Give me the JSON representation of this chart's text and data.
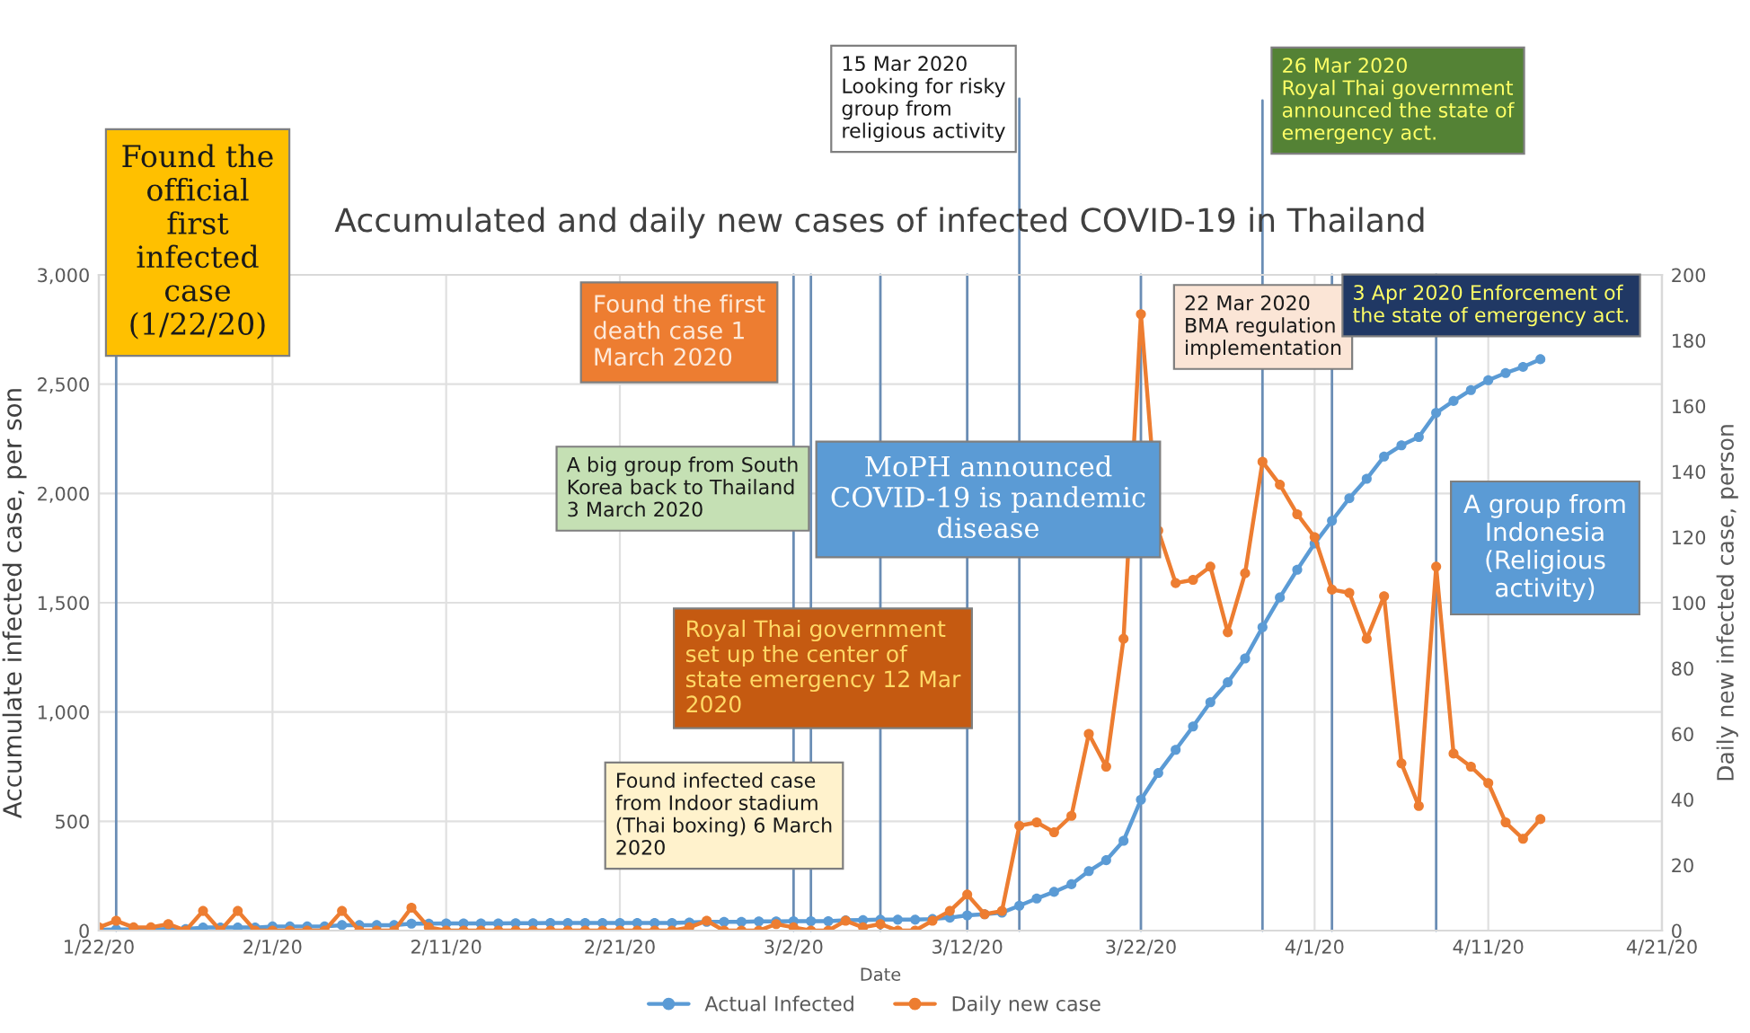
{
  "chart_data": {
    "type": "line",
    "title": "Accumulated and daily new cases of infected COVID-19 in Thailand",
    "xlabel": "Date",
    "ylabel": "Accumulate infected case, per son",
    "y2label": "Daily new infected case, person",
    "x": [
      "2020-01-22",
      "2020-01-23",
      "2020-01-24",
      "2020-01-25",
      "2020-01-26",
      "2020-01-27",
      "2020-01-28",
      "2020-01-29",
      "2020-01-30",
      "2020-01-31",
      "2020-02-01",
      "2020-02-02",
      "2020-02-03",
      "2020-02-04",
      "2020-02-05",
      "2020-02-06",
      "2020-02-07",
      "2020-02-08",
      "2020-02-09",
      "2020-02-10",
      "2020-02-11",
      "2020-02-12",
      "2020-02-13",
      "2020-02-14",
      "2020-02-15",
      "2020-02-16",
      "2020-02-17",
      "2020-02-18",
      "2020-02-19",
      "2020-02-20",
      "2020-02-21",
      "2020-02-22",
      "2020-02-23",
      "2020-02-24",
      "2020-02-25",
      "2020-02-26",
      "2020-02-27",
      "2020-02-28",
      "2020-02-29",
      "2020-03-01",
      "2020-03-02",
      "2020-03-03",
      "2020-03-04",
      "2020-03-05",
      "2020-03-06",
      "2020-03-07",
      "2020-03-08",
      "2020-03-09",
      "2020-03-10",
      "2020-03-11",
      "2020-03-12",
      "2020-03-13",
      "2020-03-14",
      "2020-03-15",
      "2020-03-16",
      "2020-03-17",
      "2020-03-18",
      "2020-03-19",
      "2020-03-20",
      "2020-03-21",
      "2020-03-22",
      "2020-03-23",
      "2020-03-24",
      "2020-03-25",
      "2020-03-26",
      "2020-03-27",
      "2020-03-28",
      "2020-03-29",
      "2020-03-30",
      "2020-03-31",
      "2020-04-01",
      "2020-04-02",
      "2020-04-03",
      "2020-04-04",
      "2020-04-05",
      "2020-04-06",
      "2020-04-07",
      "2020-04-08",
      "2020-04-09",
      "2020-04-10",
      "2020-04-11",
      "2020-04-12",
      "2020-04-13",
      "2020-04-14"
    ],
    "series": [
      {
        "name": "Actual Infected",
        "color": "#5b9bd5",
        "values": [
          4,
          5,
          5,
          5,
          7,
          7,
          14,
          14,
          14,
          14,
          19,
          19,
          19,
          19,
          25,
          25,
          25,
          25,
          32,
          32,
          33,
          33,
          33,
          33,
          34,
          34,
          35,
          35,
          35,
          35,
          35,
          35,
          35,
          35,
          37,
          40,
          40,
          40,
          42,
          42,
          43,
          43,
          43,
          47,
          48,
          50,
          50,
          50,
          53,
          59,
          70,
          75,
          82,
          114,
          147,
          177,
          212,
          272,
          322,
          411,
          599,
          721,
          827,
          934,
          1045,
          1136,
          1245,
          1388,
          1524,
          1651,
          1771,
          1875,
          1978,
          2067,
          2169,
          2220,
          2258,
          2369,
          2423,
          2473,
          2518,
          2551,
          2579,
          2614
        ]
      },
      {
        "name": "Daily new case",
        "color": "#ed7d31",
        "axis": "y2",
        "values": [
          1,
          3,
          1,
          1,
          2,
          0,
          6,
          0,
          6,
          0,
          0,
          0,
          0,
          0,
          6,
          0,
          0,
          0,
          7,
          1,
          0,
          0,
          0,
          0,
          0,
          0,
          0,
          0,
          0,
          0,
          0,
          0,
          0,
          0,
          1,
          3,
          0,
          0,
          0,
          2,
          1,
          0,
          0,
          3,
          1,
          2,
          0,
          0,
          3,
          6,
          11,
          5,
          6,
          32,
          33,
          30,
          35,
          60,
          50,
          89,
          188,
          122,
          106,
          107,
          111,
          91,
          109,
          143,
          136,
          127,
          120,
          104,
          103,
          89,
          102,
          51,
          38,
          111,
          54,
          50,
          45,
          33,
          28,
          34
        ]
      }
    ],
    "xlim": [
      "2020-01-22",
      "2020-04-21"
    ],
    "xticks": [
      {
        "value": "2020-01-22",
        "label": "1/22/20"
      },
      {
        "value": "2020-02-01",
        "label": "2/1/20"
      },
      {
        "value": "2020-02-11",
        "label": "2/11/20"
      },
      {
        "value": "2020-02-21",
        "label": "2/21/20"
      },
      {
        "value": "2020-03-02",
        "label": "3/2/20"
      },
      {
        "value": "2020-03-12",
        "label": "3/12/20"
      },
      {
        "value": "2020-03-22",
        "label": "3/22/20"
      },
      {
        "value": "2020-04-01",
        "label": "4/1/20"
      },
      {
        "value": "2020-04-11",
        "label": "4/11/20"
      },
      {
        "value": "2020-04-21",
        "label": "4/21/20"
      }
    ],
    "ylim": [
      0,
      3000
    ],
    "yticks": [
      0,
      500,
      {
        "value": 1000,
        "label": "1,000"
      },
      {
        "value": 1500,
        "label": "1,500"
      },
      {
        "value": 2000,
        "label": "2,000"
      },
      {
        "value": 2500,
        "label": "2,500"
      },
      {
        "value": 3000,
        "label": "3,000"
      }
    ],
    "y2lim": [
      0,
      200
    ],
    "y2ticks": [
      0,
      20,
      40,
      60,
      80,
      100,
      120,
      140,
      160,
      180,
      200
    ],
    "grid": true,
    "legend": "bottom",
    "marker": "circle",
    "line_style": "solid",
    "ref_lines": [
      {
        "axis": "x",
        "value": "2020-01-23",
        "label": "Found the\nofficial\nfirst\ninfected\ncase\n(1/22/20)",
        "color": "#6a8db5"
      },
      {
        "axis": "x",
        "value": "2020-03-02",
        "label": "Found the first\ndeath case 1\nMarch 2020",
        "color": "#6a8db5"
      },
      {
        "axis": "x",
        "value": "2020-03-03",
        "label": "A big group from South\nKorea back to Thailand\n3 March 2020",
        "color": "#6a8db5"
      },
      {
        "axis": "x",
        "value": "2020-03-07",
        "label": "Found infected case\nfrom Indoor stadium\n(Thai boxing) 6 March\n2020",
        "color": "#6a8db5"
      },
      {
        "axis": "x",
        "value": "2020-03-12",
        "label": "Royal Thai government\nset up the center of\nstate emergency 12 Mar\n2020",
        "color": "#6a8db5"
      },
      {
        "axis": "x",
        "value": "2020-03-15",
        "label": "15 Mar 2020\nLooking for risky\ngroup from\nreligious activity",
        "color": "#6a8db5"
      },
      {
        "axis": "x",
        "value": "2020-03-22",
        "label": "22 Mar 2020\nBMA regulation\nimplementation",
        "color": "#6a8db5"
      },
      {
        "axis": "x",
        "value": "2020-03-29",
        "label": "26 Mar 2020\nRoyal Thai government\nannounced the state of\nemergency act.",
        "color": "#6a8db5"
      },
      {
        "axis": "x",
        "value": "2020-04-02",
        "label": "3 Apr 2020 Enforcement of\nthe state of emergency act.",
        "color": "#6a8db5"
      },
      {
        "axis": "x",
        "value": "2020-04-08",
        "label": "A group from\nIndonesia\n(Religious\nactivity)",
        "color": "#6a8db5"
      }
    ],
    "annotations": [
      "MoPH announced\nCOVID-19 is pandemic\ndisease"
    ]
  }
}
